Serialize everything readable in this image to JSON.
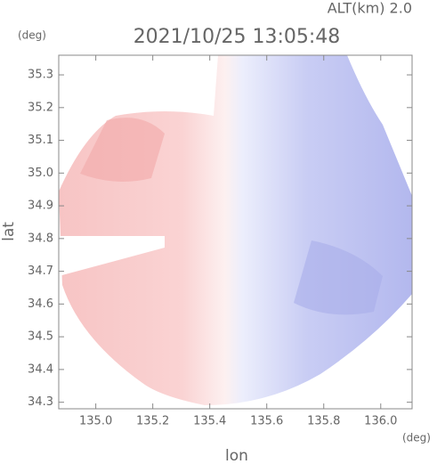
{
  "chart_data": {
    "type": "map",
    "title": "2021/10/25 13:05:48",
    "subtitle": "ALT(km) 2.0",
    "x_label": "lon",
    "y_label": "lat",
    "x_unit": "(deg)",
    "y_unit": "(deg)",
    "xlim": [
      134.87,
      136.11
    ],
    "ylim": [
      34.28,
      35.36
    ],
    "xticks": [
      {
        "value": 135,
        "label": "135.0"
      },
      135.2,
      135.4,
      135.6,
      135.8,
      {
        "value": 136,
        "label": "136.0"
      }
    ],
    "yticks": [
      34.3,
      34.4,
      34.5,
      34.6,
      34.7,
      34.8,
      34.9,
      {
        "value": 35,
        "label": "35.0"
      },
      35.1,
      35.2,
      35.3
    ]
  }
}
